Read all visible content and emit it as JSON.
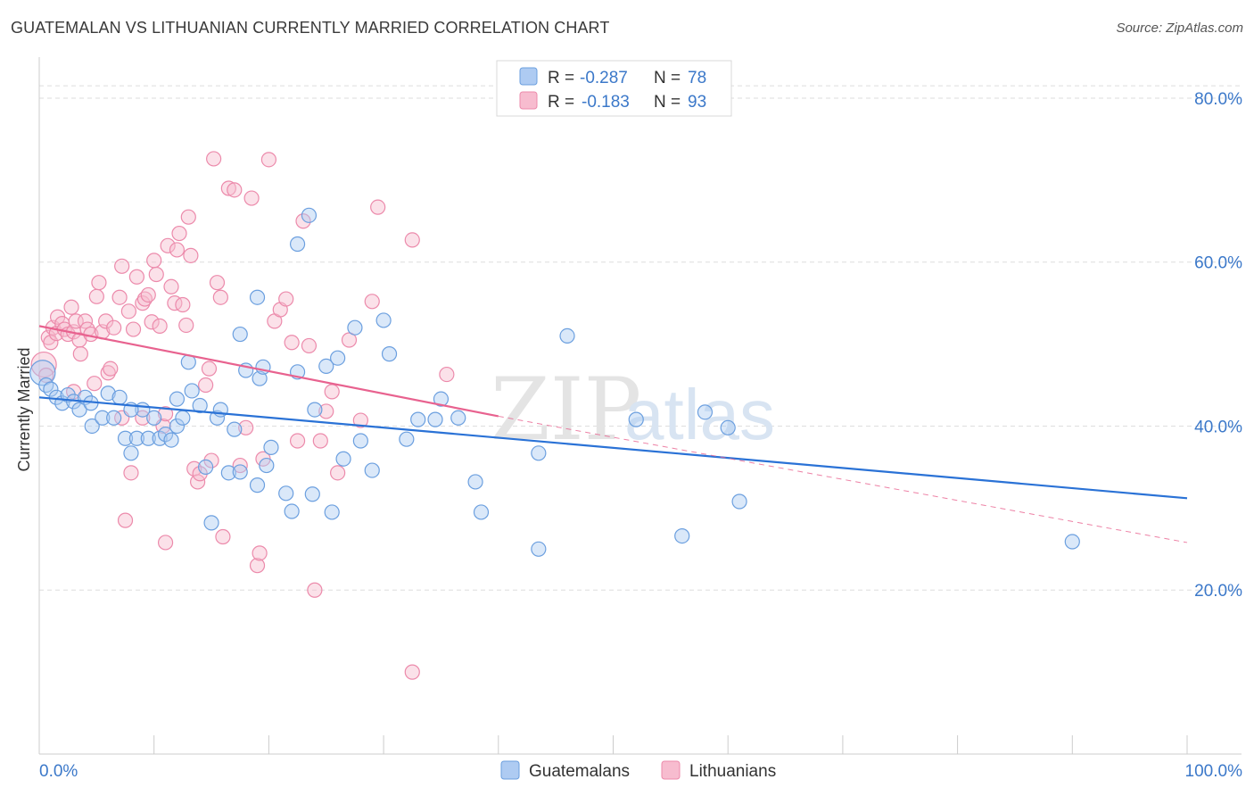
{
  "title": "GUATEMALAN VS LITHUANIAN CURRENTLY MARRIED CORRELATION CHART",
  "source": "Source: ZipAtlas.com",
  "watermark": {
    "zip": "ZIP",
    "atlas": "atlas"
  },
  "colors": {
    "blue_fill": "#aecbf2",
    "blue_stroke": "#6b9fdf",
    "blue_line": "#2a72d6",
    "pink_fill": "#f7bccf",
    "pink_stroke": "#ec8aab",
    "pink_line": "#e8628f",
    "axis_text": "#3b78c9",
    "grid": "#dddddd"
  },
  "legend": {
    "rows": [
      {
        "r_label": "R = ",
        "r_value": "-0.287",
        "n_label": "N = ",
        "n_value": "78"
      },
      {
        "r_label": "R = ",
        "r_value": "-0.183",
        "n_label": "N = ",
        "n_value": "93"
      }
    ]
  },
  "bottom_legend": [
    "Guatemalans",
    "Lithuanians"
  ],
  "chart_data": {
    "type": "scatter",
    "title": "GUATEMALAN VS LITHUANIAN CURRENTLY MARRIED CORRELATION CHART",
    "xlabel": "",
    "ylabel": "Currently Married",
    "xlim": [
      0,
      100
    ],
    "ylim": [
      0,
      85
    ],
    "x_ticks": [
      {
        "v": 0,
        "label": "0.0%"
      },
      {
        "v": 100,
        "label": "100.0%"
      }
    ],
    "y_ticks": [
      {
        "v": 20,
        "label": "20.0%"
      },
      {
        "v": 40,
        "label": "40.0%"
      },
      {
        "v": 60,
        "label": "60.0%"
      },
      {
        "v": 80,
        "label": "80.0%"
      }
    ],
    "grid": true,
    "legend_position": "top-center",
    "series": [
      {
        "name": "Guatemalans",
        "r": -0.287,
        "n": 78,
        "trend": {
          "x0": 0,
          "y0": 43.5,
          "x1": 100,
          "y1": 31.2
        },
        "points": [
          [
            0.3,
            46.5
          ],
          [
            0.6,
            45
          ],
          [
            1,
            44.5
          ],
          [
            1.5,
            43.5
          ],
          [
            2,
            42.8
          ],
          [
            2.5,
            43.8
          ],
          [
            3,
            43
          ],
          [
            3.5,
            42
          ],
          [
            4,
            43.5
          ],
          [
            4.5,
            42.8
          ],
          [
            4.6,
            40
          ],
          [
            5.5,
            41
          ],
          [
            6,
            44
          ],
          [
            6.5,
            41
          ],
          [
            7,
            43.5
          ],
          [
            7.5,
            38.5
          ],
          [
            8,
            36.7
          ],
          [
            8.5,
            38.5
          ],
          [
            9,
            42
          ],
          [
            9.5,
            38.5
          ],
          [
            10,
            41
          ],
          [
            10.5,
            38.5
          ],
          [
            11,
            39
          ],
          [
            11.5,
            38.3
          ],
          [
            12,
            40
          ],
          [
            12.5,
            41
          ],
          [
            13,
            47.8
          ],
          [
            13.3,
            44.3
          ],
          [
            14,
            42.5
          ],
          [
            14.5,
            35
          ],
          [
            15,
            28.2
          ],
          [
            15.5,
            41
          ],
          [
            15.8,
            42
          ],
          [
            16.5,
            34.3
          ],
          [
            17,
            39.6
          ],
          [
            17.5,
            34.4
          ],
          [
            17.5,
            51.2
          ],
          [
            18,
            46.8
          ],
          [
            19,
            55.7
          ],
          [
            19.2,
            45.8
          ],
          [
            19.5,
            47.2
          ],
          [
            19.8,
            35.2
          ],
          [
            20.2,
            37.4
          ],
          [
            21.5,
            31.8
          ],
          [
            22,
            29.6
          ],
          [
            22.5,
            46.6
          ],
          [
            23.5,
            65.7
          ],
          [
            23.8,
            31.7
          ],
          [
            24,
            42
          ],
          [
            25,
            47.3
          ],
          [
            25.5,
            29.5
          ],
          [
            26,
            48.3
          ],
          [
            26.5,
            36
          ],
          [
            27.5,
            52
          ],
          [
            28,
            38.2
          ],
          [
            29,
            34.6
          ],
          [
            30,
            52.9
          ],
          [
            30.5,
            48.8
          ],
          [
            32,
            38.4
          ],
          [
            33,
            40.8
          ],
          [
            34.5,
            40.8
          ],
          [
            35,
            43.3
          ],
          [
            36.5,
            41
          ],
          [
            38,
            33.2
          ],
          [
            38.5,
            29.5
          ],
          [
            43.5,
            25
          ],
          [
            43.5,
            36.7
          ],
          [
            46,
            51
          ],
          [
            52,
            40.8
          ],
          [
            56,
            26.6
          ],
          [
            58,
            41.7
          ],
          [
            60,
            39.8
          ],
          [
            61,
            30.8
          ],
          [
            90,
            25.9
          ],
          [
            22.5,
            62.2
          ],
          [
            19,
            32.8
          ],
          [
            12,
            43.3
          ],
          [
            8,
            42
          ]
        ]
      },
      {
        "name": "Lithuanians",
        "r": -0.183,
        "n": 93,
        "trend": {
          "x0": 0,
          "y0": 52.2,
          "x1": 40,
          "y1": 41.2
        },
        "trend_dashed": {
          "x0": 40,
          "y0": 41.2,
          "x1": 100,
          "y1": 25.8
        },
        "points": [
          [
            0.4,
            47.5
          ],
          [
            0.6,
            46.2
          ],
          [
            0.8,
            50.8
          ],
          [
            1,
            50.2
          ],
          [
            1.2,
            52
          ],
          [
            1.5,
            51.3
          ],
          [
            1.6,
            53.3
          ],
          [
            2,
            52.5
          ],
          [
            2.2,
            51.8
          ],
          [
            2.5,
            51.2
          ],
          [
            2.8,
            54.5
          ],
          [
            3,
            51.5
          ],
          [
            3.2,
            52.8
          ],
          [
            3.5,
            50.5
          ],
          [
            3.6,
            48.8
          ],
          [
            4,
            52.8
          ],
          [
            4.2,
            51.8
          ],
          [
            4.5,
            51.2
          ],
          [
            4.8,
            45.2
          ],
          [
            5,
            55.8
          ],
          [
            5.2,
            57.5
          ],
          [
            5.5,
            51.5
          ],
          [
            5.8,
            52.8
          ],
          [
            6,
            46.5
          ],
          [
            6.2,
            47
          ],
          [
            6.5,
            52
          ],
          [
            7,
            55.7
          ],
          [
            7.2,
            59.5
          ],
          [
            7.5,
            28.5
          ],
          [
            7.8,
            54
          ],
          [
            8,
            34.3
          ],
          [
            8.2,
            51.8
          ],
          [
            8.5,
            58.2
          ],
          [
            9,
            55
          ],
          [
            9.2,
            55.5
          ],
          [
            9.5,
            56
          ],
          [
            9.8,
            52.7
          ],
          [
            10,
            60.2
          ],
          [
            10.2,
            58.5
          ],
          [
            10.5,
            52.2
          ],
          [
            10.8,
            40
          ],
          [
            11,
            25.8
          ],
          [
            11.2,
            62
          ],
          [
            11.5,
            57
          ],
          [
            11.8,
            55
          ],
          [
            12,
            61.5
          ],
          [
            12.2,
            63.5
          ],
          [
            12.5,
            54.8
          ],
          [
            12.8,
            52.3
          ],
          [
            13,
            65.5
          ],
          [
            13.2,
            60.8
          ],
          [
            13.5,
            34.8
          ],
          [
            13.8,
            33.2
          ],
          [
            14,
            34.2
          ],
          [
            14.5,
            45
          ],
          [
            14.8,
            47
          ],
          [
            15,
            35.8
          ],
          [
            15.2,
            72.6
          ],
          [
            15.5,
            57.5
          ],
          [
            15.8,
            55.7
          ],
          [
            16,
            26.5
          ],
          [
            16.5,
            69
          ],
          [
            17,
            68.8
          ],
          [
            17.5,
            35.2
          ],
          [
            18,
            39.8
          ],
          [
            18.5,
            67.8
          ],
          [
            19,
            23
          ],
          [
            19.2,
            24.5
          ],
          [
            19.5,
            36
          ],
          [
            20,
            72.5
          ],
          [
            20.5,
            52.8
          ],
          [
            21,
            54.2
          ],
          [
            21.5,
            55.5
          ],
          [
            22,
            50.2
          ],
          [
            22.5,
            38.2
          ],
          [
            23,
            65
          ],
          [
            23.5,
            49.8
          ],
          [
            24,
            20
          ],
          [
            24.5,
            38.2
          ],
          [
            25,
            41.8
          ],
          [
            25.5,
            44.2
          ],
          [
            26,
            34.3
          ],
          [
            27,
            50.5
          ],
          [
            28,
            40.7
          ],
          [
            29,
            55.2
          ],
          [
            29.5,
            66.7
          ],
          [
            32.5,
            62.7
          ],
          [
            32.5,
            10
          ],
          [
            35.5,
            46.3
          ],
          [
            7.2,
            41
          ],
          [
            3,
            44.2
          ],
          [
            9,
            41
          ],
          [
            11,
            41.5
          ]
        ]
      }
    ]
  }
}
